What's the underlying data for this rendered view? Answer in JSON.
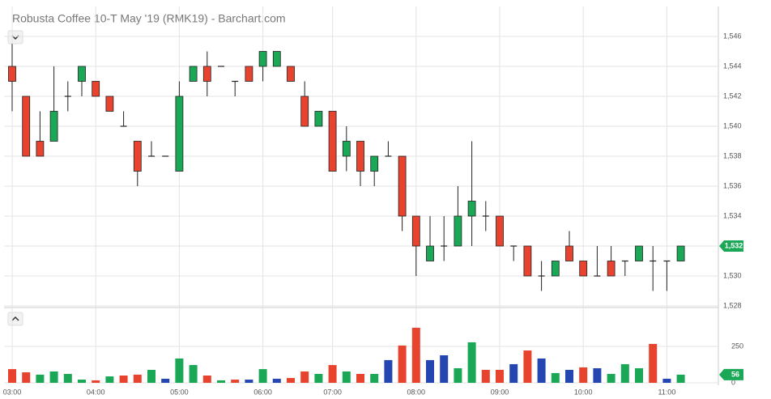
{
  "chart_data": {
    "type": "candlestick",
    "title": "Robusta Coffee 10-T May '19 (RMK19) - Barchart.com",
    "categories": [
      "03:00",
      null,
      null,
      null,
      null,
      null,
      "04:00",
      null,
      null,
      null,
      null,
      null,
      "05:00",
      null,
      null,
      null,
      null,
      null,
      "06:00",
      null,
      null,
      null,
      null,
      "07:00",
      null,
      null,
      null,
      null,
      null,
      "08:00",
      null,
      null,
      null,
      null,
      null,
      "09:00",
      null,
      null,
      null,
      null,
      null,
      "10:00",
      null,
      null,
      null,
      null,
      null,
      "11:00",
      null
    ],
    "open": [
      1544,
      1542,
      1539,
      1539,
      1542,
      1543,
      1543,
      1542,
      1540,
      1539,
      1538,
      1538,
      1537,
      1543,
      1544,
      1544,
      1543,
      1544,
      1544,
      1544,
      1544,
      1542,
      1540,
      1541,
      1538,
      1539,
      1537,
      1538,
      1538,
      1534,
      1531,
      1532,
      1532,
      1534,
      1534,
      1534,
      1532,
      1532,
      1530,
      1530,
      1532,
      1531,
      1530,
      1531,
      1531,
      1531,
      1531,
      1531,
      1531
    ],
    "high": [
      1545.5,
      1542,
      1541,
      1544,
      1543,
      1544,
      1543,
      1542,
      1541,
      1539,
      1539,
      1538,
      1543,
      1544,
      1545,
      1544,
      1543,
      1544,
      1545,
      1545,
      1544,
      1543,
      1541,
      1541,
      1540,
      1539,
      1538,
      1539,
      1538,
      1534,
      1534,
      1534,
      1536,
      1539,
      1535,
      1534,
      1532,
      1532,
      1531,
      1531,
      1533,
      1531,
      1532,
      1532,
      1531,
      1532,
      1532,
      1531,
      1532
    ],
    "low": [
      1541,
      1538,
      1538,
      1539,
      1541,
      1542,
      1542,
      1541,
      1540,
      1536,
      1538,
      1538,
      1537,
      1543,
      1542,
      1544,
      1542,
      1543,
      1543,
      1544,
      1543,
      1540,
      1540,
      1537,
      1537,
      1536,
      1536,
      1538,
      1533,
      1530,
      1531,
      1531,
      1532,
      1532,
      1533,
      1532,
      1531,
      1530,
      1529,
      1530,
      1531,
      1530,
      1530,
      1530,
      1530,
      1531,
      1529,
      1529,
      1531
    ],
    "close": [
      1543,
      1538,
      1538,
      1541,
      1542,
      1544,
      1542,
      1541,
      1540,
      1537,
      1538,
      1538,
      1542,
      1544,
      1543,
      1544,
      1543,
      1543,
      1545,
      1545,
      1543,
      1540,
      1541,
      1537,
      1539,
      1537,
      1538,
      1538,
      1534,
      1532,
      1532,
      1532,
      1534,
      1535,
      1534,
      1532,
      1532,
      1530,
      1530,
      1531,
      1531,
      1530,
      1530,
      1530,
      1531,
      1532,
      1531,
      1531,
      1532
    ],
    "up_color": "#1aa857",
    "down_color": "#e8432e",
    "ylim": [
      1528,
      1548
    ],
    "yticks": [
      {
        "value": 1528,
        "label": "1,528"
      },
      {
        "value": 1530,
        "label": "1,530"
      },
      {
        "value": 1532,
        "label": "1,532"
      },
      {
        "value": 1534,
        "label": "1,534"
      },
      {
        "value": 1536,
        "label": "1,536"
      },
      {
        "value": 1538,
        "label": "1,538"
      },
      {
        "value": 1540,
        "label": "1,540"
      },
      {
        "value": 1542,
        "label": "1,542"
      },
      {
        "value": 1544,
        "label": "1,544"
      },
      {
        "value": 1546,
        "label": "1,546"
      }
    ],
    "grid": true,
    "current_price": {
      "value": 1532,
      "label": "1,532"
    },
    "volume": {
      "values": [
        94,
        72,
        56,
        78,
        61,
        22,
        17,
        44,
        50,
        56,
        89,
        28,
        167,
        122,
        50,
        17,
        22,
        22,
        94,
        28,
        33,
        78,
        61,
        122,
        78,
        61,
        61,
        156,
        256,
        378,
        156,
        189,
        100,
        278,
        89,
        89,
        128,
        222,
        167,
        67,
        89,
        106,
        100,
        61,
        128,
        100,
        267,
        28,
        56
      ],
      "colors": [
        "#e8432e",
        "#e8432e",
        "#1aa857",
        "#1aa857",
        "#1aa857",
        "#1aa857",
        "#e8432e",
        "#1aa857",
        "#e8432e",
        "#e8432e",
        "#1aa857",
        "#2346b0",
        "#1aa857",
        "#1aa857",
        "#e8432e",
        "#1aa857",
        "#e8432e",
        "#2346b0",
        "#1aa857",
        "#2346b0",
        "#e8432e",
        "#e8432e",
        "#1aa857",
        "#e8432e",
        "#1aa857",
        "#e8432e",
        "#1aa857",
        "#2346b0",
        "#e8432e",
        "#e8432e",
        "#2346b0",
        "#2346b0",
        "#1aa857",
        "#1aa857",
        "#e8432e",
        "#e8432e",
        "#2346b0",
        "#e8432e",
        "#2346b0",
        "#1aa857",
        "#2346b0",
        "#e8432e",
        "#2346b0",
        "#1aa857",
        "#1aa857",
        "#1aa857",
        "#e8432e",
        "#2346b0",
        "#1aa857"
      ],
      "ylim": [
        0,
        500
      ],
      "yticks": [
        0,
        250
      ]
    }
  }
}
